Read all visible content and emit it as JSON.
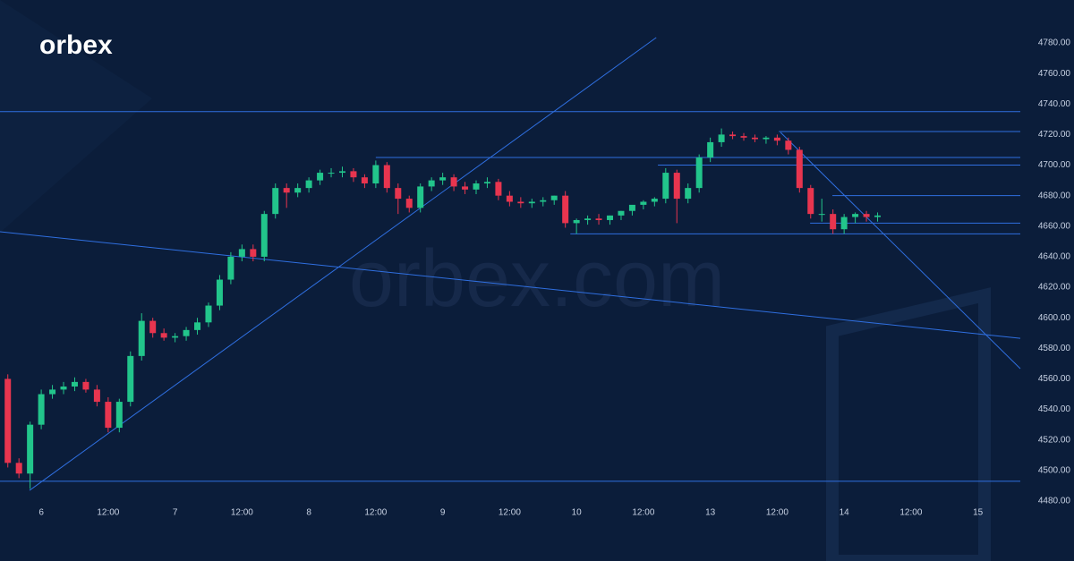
{
  "logo": "orbex",
  "watermark": "orbex.com",
  "chart_data": {
    "type": "candlestick",
    "up_color": "#22c58b",
    "down_color": "#e8354f",
    "line_color": "#2f6fe0",
    "xlim": [
      -7.4,
      175.6
    ],
    "ylim": [
      4480,
      4780
    ],
    "xticks": [
      {
        "value": 0,
        "label": "6"
      },
      {
        "value": 12,
        "label": "12:00"
      },
      {
        "value": 24,
        "label": "7"
      },
      {
        "value": 36,
        "label": "12:00"
      },
      {
        "value": 48,
        "label": "8"
      },
      {
        "value": 60,
        "label": "12:00"
      },
      {
        "value": 72,
        "label": "9"
      },
      {
        "value": 84,
        "label": "12:00"
      },
      {
        "value": 96,
        "label": "10"
      },
      {
        "value": 108,
        "label": "12:00"
      },
      {
        "value": 120,
        "label": "13"
      },
      {
        "value": 132,
        "label": "12:00"
      },
      {
        "value": 144,
        "label": "14"
      },
      {
        "value": 156,
        "label": "12:00"
      },
      {
        "value": 168,
        "label": "15"
      }
    ],
    "yticks": [
      {
        "value": 4480,
        "label": "4480.00"
      },
      {
        "value": 4500,
        "label": "4500.00"
      },
      {
        "value": 4520,
        "label": "4520.00"
      },
      {
        "value": 4540,
        "label": "4540.00"
      },
      {
        "value": 4560,
        "label": "4560.00"
      },
      {
        "value": 4580,
        "label": "4580.00"
      },
      {
        "value": 4600,
        "label": "4600.00"
      },
      {
        "value": 4620,
        "label": "4620.00"
      },
      {
        "value": 4640,
        "label": "4640.00"
      },
      {
        "value": 4660,
        "label": "4660.00"
      },
      {
        "value": 4680,
        "label": "4680.00"
      },
      {
        "value": 4700,
        "label": "4700.00"
      },
      {
        "value": 4720,
        "label": "4720.00"
      },
      {
        "value": 4740,
        "label": "4740.00"
      },
      {
        "value": 4760,
        "label": "4760.00"
      },
      {
        "value": 4780,
        "label": "4780.00"
      }
    ],
    "x": [
      -6,
      -4,
      -2,
      0,
      2,
      4,
      6,
      8,
      10,
      12,
      14,
      16,
      18,
      20,
      22,
      24,
      26,
      28,
      30,
      32,
      34,
      36,
      38,
      40,
      42,
      44,
      46,
      48,
      50,
      52,
      54,
      56,
      58,
      60,
      62,
      64,
      66,
      68,
      70,
      72,
      74,
      76,
      78,
      80,
      82,
      84,
      86,
      88,
      90,
      92,
      94,
      96,
      98,
      100,
      102,
      104,
      106,
      108,
      110,
      112,
      114,
      116,
      118,
      120,
      122,
      124,
      126,
      128,
      130,
      132,
      134,
      136,
      138,
      140,
      142,
      144,
      146,
      148,
      150
    ],
    "open": [
      4560,
      4505,
      4498,
      4530,
      4550,
      4553,
      4555,
      4558,
      4553,
      4545,
      4528,
      4545,
      4575,
      4598,
      4590,
      4587,
      4588,
      4592,
      4597,
      4608,
      4625,
      4640,
      4645,
      4640,
      4668,
      4685,
      4682,
      4685,
      4690,
      4695,
      4695,
      4696,
      4692,
      4688,
      4700,
      4685,
      4678,
      4672,
      4686,
      4690,
      4692,
      4686,
      4684,
      4688,
      4689,
      4680,
      4676,
      4675,
      4676,
      4677,
      4680,
      4662,
      4664,
      4665,
      4664,
      4667,
      4670,
      4674,
      4676,
      4678,
      4695,
      4678,
      4685,
      4705,
      4715,
      4720,
      4719,
      4718,
      4717,
      4718,
      4716,
      4710,
      4685,
      4668,
      4668,
      4658,
      4666,
      4668,
      4666
    ],
    "high": [
      4563,
      4508,
      4532,
      4553,
      4556,
      4558,
      4561,
      4560,
      4556,
      4548,
      4547,
      4578,
      4603,
      4600,
      4593,
      4590,
      4594,
      4600,
      4610,
      4628,
      4643,
      4648,
      4648,
      4670,
      4688,
      4688,
      4688,
      4692,
      4697,
      4698,
      4699,
      4698,
      4694,
      4703,
      4702,
      4688,
      4680,
      4688,
      4692,
      4695,
      4694,
      4689,
      4690,
      4692,
      4691,
      4683,
      4679,
      4678,
      4679,
      4680,
      4683,
      4665,
      4667,
      4668,
      4667,
      4670,
      4673,
      4677,
      4679,
      4698,
      4697,
      4688,
      4707,
      4718,
      4724,
      4722,
      4721,
      4720,
      4719,
      4720,
      4718,
      4712,
      4687,
      4678,
      4671,
      4668,
      4669,
      4670,
      4669
    ],
    "low": [
      4502,
      4495,
      4488,
      4527,
      4547,
      4550,
      4552,
      4551,
      4542,
      4525,
      4525,
      4542,
      4572,
      4587,
      4585,
      4584,
      4585,
      4589,
      4594,
      4605,
      4622,
      4637,
      4637,
      4637,
      4665,
      4672,
      4679,
      4682,
      4687,
      4692,
      4692,
      4689,
      4685,
      4685,
      4682,
      4668,
      4669,
      4669,
      4683,
      4687,
      4683,
      4681,
      4681,
      4685,
      4677,
      4673,
      4672,
      4672,
      4673,
      4674,
      4659,
      4655,
      4661,
      4661,
      4661,
      4664,
      4667,
      4671,
      4673,
      4675,
      4662,
      4675,
      4682,
      4702,
      4712,
      4717,
      4716,
      4715,
      4714,
      4713,
      4707,
      4682,
      4665,
      4663,
      4655,
      4655,
      4662,
      4663,
      4663
    ],
    "close": [
      4505,
      4498,
      4530,
      4550,
      4553,
      4555,
      4558,
      4553,
      4545,
      4528,
      4545,
      4575,
      4598,
      4590,
      4587,
      4588,
      4592,
      4597,
      4608,
      4625,
      4640,
      4645,
      4640,
      4668,
      4685,
      4682,
      4685,
      4690,
      4695,
      4695,
      4696,
      4692,
      4688,
      4700,
      4685,
      4678,
      4672,
      4686,
      4690,
      4692,
      4686,
      4684,
      4688,
      4689,
      4680,
      4676,
      4675,
      4676,
      4677,
      4680,
      4662,
      4664,
      4665,
      4664,
      4667,
      4670,
      4674,
      4676,
      4678,
      4695,
      4678,
      4685,
      4705,
      4715,
      4720,
      4719,
      4718,
      4717,
      4718,
      4716,
      4710,
      4685,
      4668,
      4668,
      4658,
      4666,
      4668,
      4666,
      4667
    ],
    "levels": [
      {
        "value": 4735,
        "from": -7.4
      },
      {
        "value": 4493,
        "from": -7.4
      },
      {
        "value": 4705,
        "from": 60
      },
      {
        "value": 4700,
        "from": 110.6
      },
      {
        "value": 4722,
        "from": 132.3
      },
      {
        "value": 4680,
        "from": 141.9
      },
      {
        "value": 4662,
        "from": 137.9
      },
      {
        "value": 4655,
        "from": 94.9
      }
    ],
    "trendlines": [
      {
        "x": [
          -2.1,
          110.3
        ],
        "y": [
          4487,
          4783.5
        ]
      },
      {
        "x": [
          -7.4,
          175.6
        ],
        "y": [
          4656.4,
          4586.6
        ]
      },
      {
        "x": [
          132.6,
          175.6
        ],
        "y": [
          4721.4,
          4566.7
        ]
      }
    ]
  }
}
